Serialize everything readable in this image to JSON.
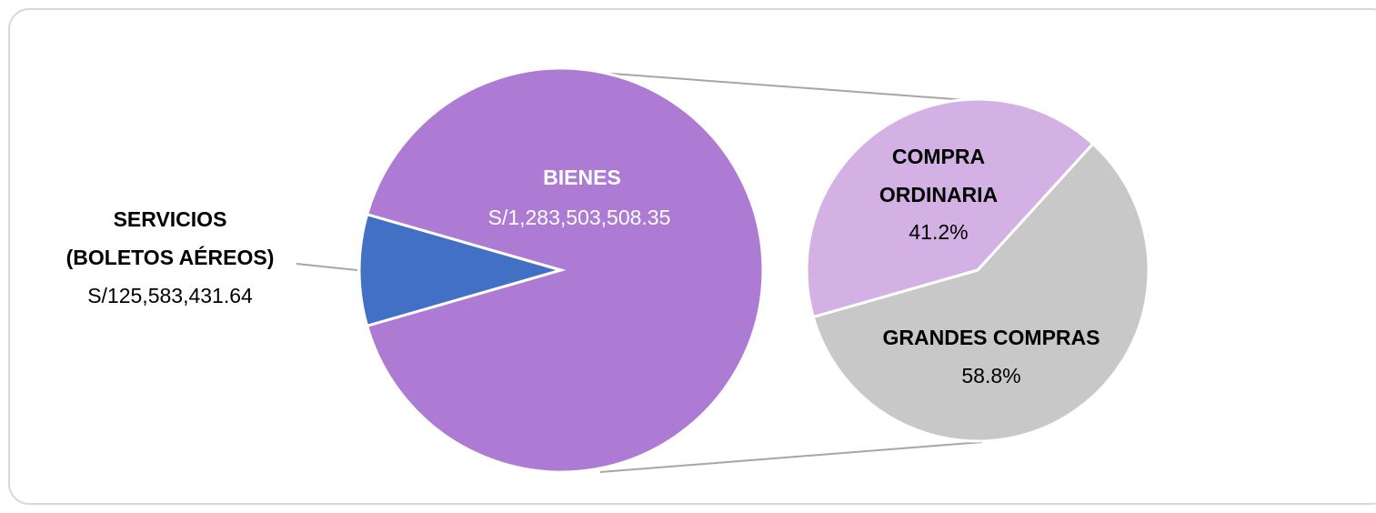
{
  "chart_data": {
    "type": "pie-of-pie",
    "primary": {
      "categories": [
        "SERVICIOS\n(BOLETOS AÉREOS)",
        "BIENES"
      ],
      "values": [
        125583431.64,
        1283503508.35
      ],
      "value_labels": [
        "S/125,583,431.64",
        "S/1,283,503,508.35"
      ],
      "colors": [
        "#4270c4",
        "#ad7bd4"
      ]
    },
    "secondary": {
      "categories": [
        "COMPRA\nORDINARIA",
        "GRANDES COMPRAS"
      ],
      "values": [
        41.2,
        58.8
      ],
      "value_labels": [
        "41.2%",
        "58.8%"
      ],
      "colors": [
        "#d3b1e4",
        "#c8c8c8"
      ]
    }
  }
}
